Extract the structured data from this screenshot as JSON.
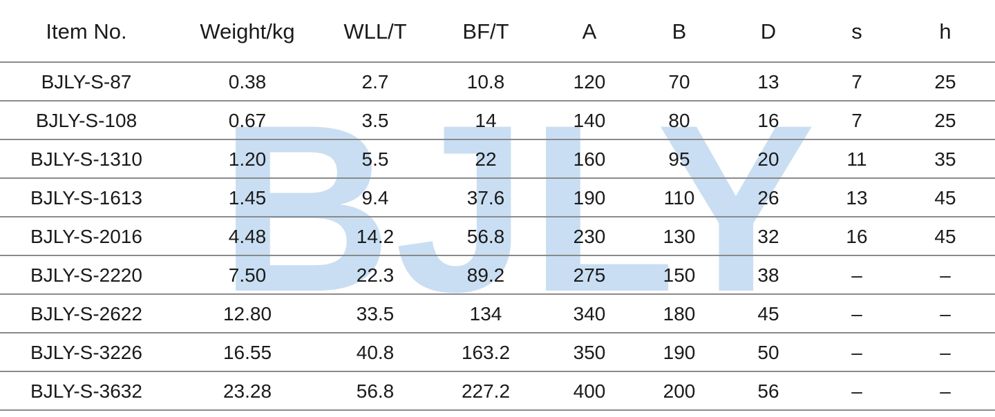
{
  "watermark": "BJLY",
  "table": {
    "header": [
      "Item No.",
      "Weight/kg",
      "WLL/T",
      "BF/T",
      "A",
      "B",
      "D",
      "s",
      "h"
    ],
    "rows": [
      [
        "BJLY-S-87",
        "0.38",
        "2.7",
        "10.8",
        "120",
        "70",
        "13",
        "7",
        "25"
      ],
      [
        "BJLY-S-108",
        "0.67",
        "3.5",
        "14",
        "140",
        "80",
        "16",
        "7",
        "25"
      ],
      [
        "BJLY-S-1310",
        "1.20",
        "5.5",
        "22",
        "160",
        "95",
        "20",
        "11",
        "35"
      ],
      [
        "BJLY-S-1613",
        "1.45",
        "9.4",
        "37.6",
        "190",
        "110",
        "26",
        "13",
        "45"
      ],
      [
        "BJLY-S-2016",
        "4.48",
        "14.2",
        "56.8",
        "230",
        "130",
        "32",
        "16",
        "45"
      ],
      [
        "BJLY-S-2220",
        "7.50",
        "22.3",
        "89.2",
        "275",
        "150",
        "38",
        "–",
        "–"
      ],
      [
        "BJLY-S-2622",
        "12.80",
        "33.5",
        "134",
        "340",
        "180",
        "45",
        "–",
        "–"
      ],
      [
        "BJLY-S-3226",
        "16.55",
        "40.8",
        "163.2",
        "350",
        "190",
        "50",
        "–",
        "–"
      ],
      [
        "BJLY-S-3632",
        "23.28",
        "56.8",
        "227.2",
        "400",
        "200",
        "56",
        "–",
        "–"
      ]
    ]
  }
}
